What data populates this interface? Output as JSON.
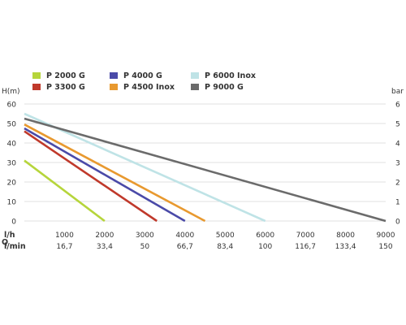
{
  "chart_data": {
    "type": "line",
    "left_axis": {
      "label": "H(m)",
      "ticks": [
        0,
        10,
        20,
        30,
        40,
        50,
        60
      ],
      "range": [
        0,
        60
      ]
    },
    "right_axis": {
      "label": "bar",
      "ticks": [
        0,
        1,
        2,
        3,
        4,
        5,
        6
      ],
      "range": [
        0,
        6
      ]
    },
    "x_axis": {
      "range": [
        0,
        9000
      ],
      "row1_label": "l/h",
      "row1_ticks": [
        "1000",
        "2000",
        "3000",
        "4000",
        "5000",
        "6000",
        "7000",
        "8000",
        "9000"
      ],
      "row_side_label": "Q",
      "row2_label": "l/min",
      "row2_ticks": [
        "16,7",
        "33,4",
        "50",
        "66,7",
        "83,4",
        "100",
        "116,7",
        "133,4",
        "150"
      ]
    },
    "grid": "horizontal",
    "legend_position": "top",
    "series": [
      {
        "name": "P 2000 G",
        "color": "#b6d53b",
        "x": [
          0,
          2000
        ],
        "y": [
          31,
          0
        ]
      },
      {
        "name": "P 3300 G",
        "color": "#c0392b",
        "x": [
          0,
          3300
        ],
        "y": [
          46,
          0
        ]
      },
      {
        "name": "P 4000 G",
        "color": "#4a4aa8",
        "x": [
          0,
          4000
        ],
        "y": [
          47.5,
          0
        ]
      },
      {
        "name": "P 4500 Inox",
        "color": "#e8992f",
        "x": [
          0,
          4500
        ],
        "y": [
          49.5,
          0
        ]
      },
      {
        "name": "P 6000 Inox",
        "color": "#bfe3e6",
        "x": [
          0,
          6000
        ],
        "y": [
          55,
          0
        ]
      },
      {
        "name": "P 9000 G",
        "color": "#6b6b6b",
        "x": [
          0,
          9000
        ],
        "y": [
          52.5,
          0
        ]
      }
    ]
  }
}
